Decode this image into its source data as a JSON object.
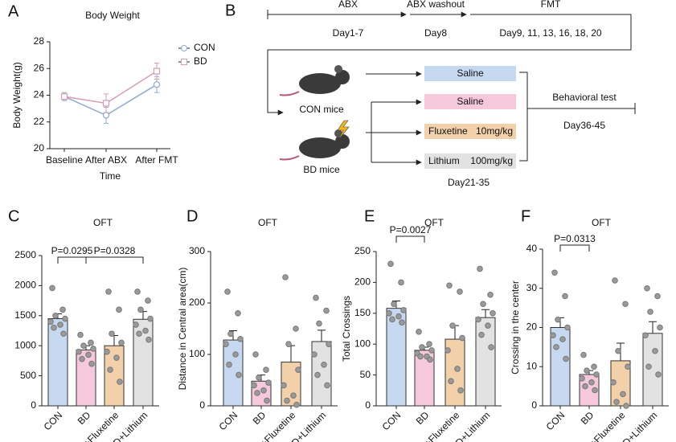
{
  "chart_data": [
    {
      "type": "line",
      "panel": "A",
      "title": "Body Weight",
      "xlabel": "Time",
      "ylabel": "Body Weight(g)",
      "categories": [
        "Baseline",
        "After ABX",
        "After FMT"
      ],
      "ylim": [
        20,
        28
      ],
      "yticks": [
        20,
        22,
        24,
        26,
        28
      ],
      "series": [
        {
          "name": "CON",
          "color": "#8fa9d4",
          "values": [
            23.9,
            22.5,
            24.8
          ],
          "errors": [
            0.3,
            0.6,
            0.6
          ]
        },
        {
          "name": "BD",
          "color": "#d79bb6",
          "values": [
            23.9,
            23.4,
            25.8
          ],
          "errors": [
            0.2,
            0.7,
            0.6
          ]
        }
      ]
    },
    {
      "type": "bar",
      "panel": "C",
      "title": "OFT",
      "categories": [
        "CON",
        "BD",
        "BD+Fluxetine",
        "BD+Lithium"
      ],
      "colors": [
        "#c6d9f1",
        "#f5c8dc",
        "#f2d0aa",
        "#e2e2e2"
      ],
      "ylim": [
        0,
        2500
      ],
      "yticks": [
        0,
        500,
        1000,
        1500,
        2000,
        2500
      ],
      "values": [
        1450,
        930,
        1000,
        1440
      ],
      "errors": [
        80,
        70,
        170,
        130
      ],
      "points": [
        [
          1960,
          1600,
          1500,
          1450,
          1400,
          1350,
          1300,
          1200
        ],
        [
          1180,
          1050,
          1000,
          950,
          900,
          850,
          780,
          700
        ],
        [
          1900,
          1600,
          1200,
          1050,
          900,
          800,
          600,
          400
        ],
        [
          1900,
          1750,
          1600,
          1450,
          1350,
          1250,
          1200,
          1100
        ]
      ],
      "annotations": [
        {
          "text": "P=0.0295",
          "from": 0,
          "to": 1
        },
        {
          "text": "P=0.0328",
          "from": 1,
          "to": 3
        }
      ]
    },
    {
      "type": "bar",
      "panel": "D",
      "title": "OFT",
      "ylabel": "Distance in Central area(cm)",
      "categories": [
        "CON",
        "BD",
        "BD+Fluxetine",
        "BD+Lithium"
      ],
      "colors": [
        "#c6d9f1",
        "#f5c8dc",
        "#f2d0aa",
        "#e2e2e2"
      ],
      "ylim": [
        0,
        300
      ],
      "yticks": [
        0,
        100,
        200,
        300
      ],
      "values": [
        128,
        48,
        85,
        125
      ],
      "errors": [
        18,
        12,
        32,
        22
      ],
      "points": [
        [
          222,
          180,
          140,
          130,
          120,
          100,
          80,
          60
        ],
        [
          100,
          70,
          55,
          45,
          40,
          30,
          25,
          10
        ],
        [
          250,
          150,
          120,
          70,
          40,
          20,
          10,
          2
        ],
        [
          210,
          185,
          160,
          120,
          100,
          80,
          60,
          40
        ]
      ],
      "annotations": []
    },
    {
      "type": "bar",
      "panel": "E",
      "title": "OFT",
      "ylabel": "Total Crossings",
      "categories": [
        "CON",
        "BD",
        "BD+Fluxetine",
        "BD+Lithium"
      ],
      "colors": [
        "#c6d9f1",
        "#f5c8dc",
        "#f2d0aa",
        "#e2e2e2"
      ],
      "ylim": [
        0,
        250
      ],
      "yticks": [
        0,
        50,
        100,
        150,
        200,
        250
      ],
      "values": [
        158,
        90,
        108,
        143
      ],
      "errors": [
        12,
        5,
        22,
        13
      ],
      "points": [
        [
          230,
          200,
          165,
          155,
          150,
          145,
          140,
          135
        ],
        [
          120,
          100,
          95,
          90,
          85,
          80,
          80,
          75
        ],
        [
          195,
          185,
          130,
          110,
          90,
          60,
          40,
          25
        ],
        [
          222,
          180,
          165,
          150,
          140,
          130,
          115,
          95
        ]
      ],
      "annotations": [
        {
          "text": "P=0.0027",
          "from": 0,
          "to": 1
        }
      ]
    },
    {
      "type": "bar",
      "panel": "F",
      "title": "OFT",
      "ylabel": "Crossing in the center",
      "categories": [
        "CON",
        "BD",
        "BD+Fluxetine",
        "BD+Lithium"
      ],
      "colors": [
        "#c6d9f1",
        "#f5c8dc",
        "#f2d0aa",
        "#e2e2e2"
      ],
      "ylim": [
        0,
        40
      ],
      "yticks": [
        0,
        10,
        20,
        30,
        40
      ],
      "values": [
        20,
        8,
        11.5,
        18.5
      ],
      "errors": [
        2.5,
        1,
        4.5,
        3
      ],
      "points": [
        [
          34,
          28,
          22,
          20,
          18,
          17,
          15,
          12
        ],
        [
          13,
          10,
          9,
          8,
          7,
          6,
          5,
          4
        ],
        [
          32,
          26,
          14,
          10,
          6,
          3,
          1,
          0
        ],
        [
          30,
          28,
          24,
          20,
          18,
          14,
          10,
          8
        ]
      ],
      "annotations": [
        {
          "text": "P=0.0313",
          "from": 0,
          "to": 1
        }
      ]
    }
  ],
  "diagram": {
    "panel": "B",
    "timeline": [
      {
        "label": "ABX",
        "days": "Day1-7"
      },
      {
        "label": "ABX washout",
        "days": "Day8"
      },
      {
        "label": "FMT",
        "days": "Day9, 11, 13, 16, 18, 20"
      }
    ],
    "groups": [
      "CON mice",
      "BD mice"
    ],
    "treatments": [
      {
        "name": "Saline",
        "color": "#c6d9f1"
      },
      {
        "name": "Saline",
        "color": "#f5c8dc"
      },
      {
        "name": "Fluxetine",
        "dose": "10mg/kg",
        "color": "#f2d0aa"
      },
      {
        "name": "Lithium",
        "dose": "100mg/kg",
        "color": "#e2e2e2"
      }
    ],
    "treatment_days": "Day21-35",
    "test": "Behavioral test",
    "test_days": "Day36-45"
  }
}
